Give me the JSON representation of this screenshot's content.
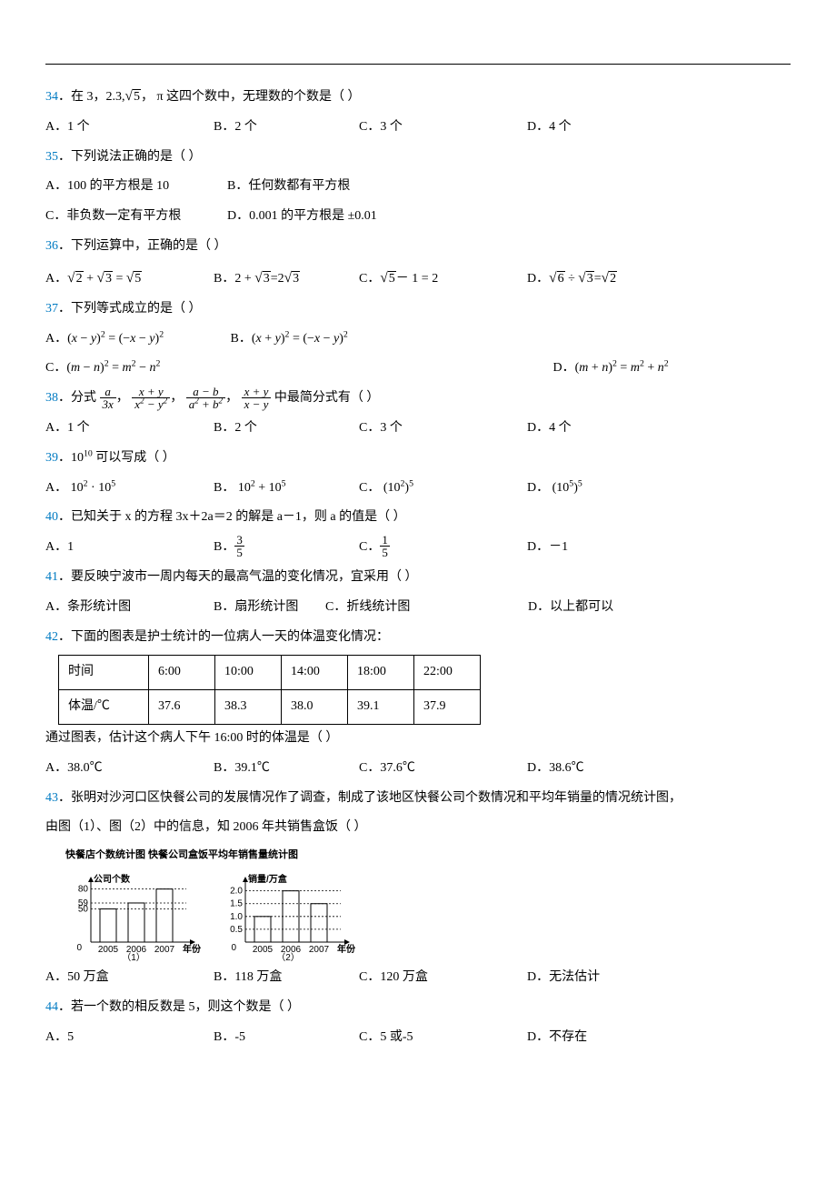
{
  "q34": {
    "stem_pre": "34",
    "stem": "．在 3，2.3,",
    "sqrt": "5",
    "stem2": "， π 这四个数中，无理数的个数是（   ）",
    "A": "A．1 个",
    "B": "B．2 个",
    "C": "C．3 个",
    "D": "D．4 个"
  },
  "q35": {
    "num": "35",
    "stem": "．下列说法正确的是（   ）",
    "A": "A．100 的平方根是 10",
    "B": "B．任何数都有平方根",
    "C": "C．非负数一定有平方根",
    "D": "D．0.001 的平方根是 ±0.01"
  },
  "q36": {
    "num": "36",
    "stem": "．下列运算中，正确的是（   ）",
    "A_pre": "A．",
    "B_pre": "B．",
    "C_pre": "C．",
    "D_pre": "D．"
  },
  "q37": {
    "num": "37",
    "stem": "．下列等式成立的是（   ）",
    "A": "A．",
    "B": "B．",
    "C": "C．",
    "D": "D．"
  },
  "q38": {
    "num": "38",
    "stem": "．分式",
    "stem2": "中最简分式有（   ）",
    "A": "A．1 个",
    "B": "B．2 个",
    "C": "C．3 个",
    "D": "D．4 个"
  },
  "q39": {
    "num": "39",
    "stem": "．10",
    "exp": "10",
    "stem2": " 可以写成（   ）",
    "A": "A．",
    "B": "B．",
    "C": "C．",
    "D": "D．"
  },
  "q40": {
    "num": "40",
    "stem": "．已知关于 x 的方程 3x＋2a＝2 的解是 a－1，则 a 的值是（   ）",
    "A": "A．1",
    "B": "B．",
    "C": "C．",
    "D": "D．－1"
  },
  "q41": {
    "num": "41",
    "stem": "．要反映宁波市一周内每天的最高气温的变化情况，宜采用（   ）",
    "A": "A．条形统计图",
    "B": "B．扇形统计图",
    "C": "C．折线统计图",
    "D": "D．以上都可以"
  },
  "q42": {
    "num": "42",
    "stem": "．下面的图表是护士统计的一位病人一天的体温变化情况：",
    "table": {
      "r1": [
        "时间",
        "6:00",
        "10:00",
        "14:00",
        "18:00",
        "22:00"
      ],
      "r2": [
        "体温/℃",
        "37.6",
        "38.3",
        "38.0",
        "39.1",
        "37.9"
      ]
    },
    "line2": "通过图表，估计这个病人下午 16:00 时的体温是（   ）",
    "A": "A．38.0℃",
    "B": "B．39.1℃",
    "C": "C．37.6℃",
    "D": "D．38.6℃"
  },
  "q43": {
    "num": "43",
    "stem": "．张明对沙河口区快餐公司的发展情况作了调查，制成了该地区快餐公司个数情况和平均年销量的情况统计图，",
    "stem2": "由图（1）、图（2）中的信息，知 2006 年共销售盒饭（   ）",
    "titles": "快餐店个数统计图  快餐公司盒饭平均年销售量统计图",
    "chart1": {
      "type": "bar",
      "ylabel": "公司个数",
      "xlabel": "年份",
      "categories": [
        "2005",
        "2006",
        "2007"
      ],
      "values": [
        50,
        59,
        80
      ],
      "yticks": [
        "50",
        "59",
        "80"
      ],
      "ylim": [
        0,
        85
      ],
      "bar_color": "#ffffff",
      "bar_border": "#000000",
      "dash_color": "#000000",
      "caption": "（1）"
    },
    "chart2": {
      "type": "bar",
      "ylabel": "销量/万盒",
      "xlabel": "年份",
      "categories": [
        "2005",
        "2006",
        "2007"
      ],
      "values": [
        1.0,
        2.0,
        1.5
      ],
      "yticks": [
        "0.5",
        "1.0",
        "1.5",
        "2.0"
      ],
      "ylim": [
        0,
        2.2
      ],
      "bar_color": "#ffffff",
      "bar_border": "#000000",
      "dash_color": "#000000",
      "caption": "（2）"
    },
    "A": "A．50 万盒",
    "B": "B．118 万盒",
    "C": "C．120 万盒",
    "D": "D．无法估计"
  },
  "q44": {
    "num": "44",
    "stem": "．若一个数的相反数是 5，则这个数是（   ）",
    "A": "A．5",
    "B": "B．-5",
    "C": "C．5 或-5",
    "D": "D．不存在"
  }
}
